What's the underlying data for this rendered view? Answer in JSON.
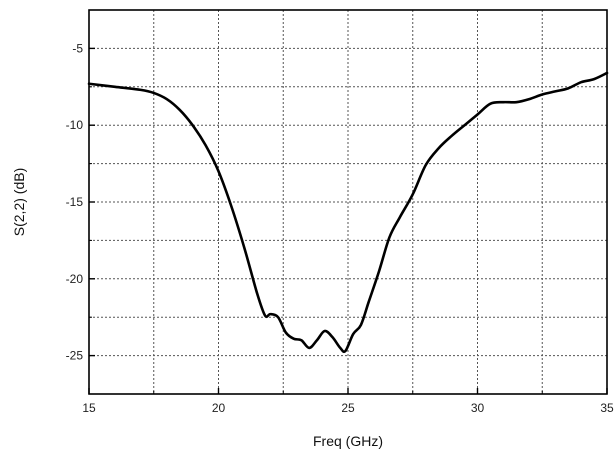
{
  "chart_data": {
    "type": "line",
    "title": "",
    "xlabel": "Freq (GHz)",
    "ylabel": "S(2,2) (dB)",
    "xlim": [
      15,
      35
    ],
    "ylim": [
      -27.5,
      -2.5
    ],
    "xticks": [
      15,
      20,
      25,
      30,
      35
    ],
    "xtick_labels": [
      "15",
      "20",
      "25",
      "30",
      "35"
    ],
    "yticks": [
      -5,
      -10,
      -15,
      -20,
      -25
    ],
    "ytick_labels": [
      "-5",
      "-10",
      "-15",
      "-20",
      "-25"
    ],
    "minor_grid_x": [
      17.5,
      22.5,
      27.5,
      32.5
    ],
    "minor_grid_y": [
      -7.5,
      -12.5,
      -17.5,
      -22.5
    ],
    "grid": true,
    "line_color": "#000000",
    "series": [
      {
        "x": [
          15,
          16,
          17,
          17.5,
          18,
          18.5,
          19,
          19.5,
          20,
          20.5,
          21,
          21.5,
          21.8,
          22,
          22.3,
          22.6,
          22.9,
          23.2,
          23.5,
          23.8,
          24.1,
          24.4,
          24.7,
          24.9,
          25.2,
          25.5,
          25.8,
          26.2,
          26.6,
          27,
          27.5,
          28,
          28.5,
          29,
          29.5,
          30,
          30.5,
          31,
          31.5,
          32,
          32.5,
          33,
          33.5,
          34,
          34.5,
          35
        ],
        "y": [
          -7.3,
          -7.5,
          -7.7,
          -7.9,
          -8.3,
          -9.0,
          -10.0,
          -11.3,
          -13.0,
          -15.3,
          -18.0,
          -21.0,
          -22.4,
          -22.3,
          -22.5,
          -23.5,
          -23.9,
          -24.0,
          -24.5,
          -24.0,
          -23.4,
          -23.8,
          -24.5,
          -24.7,
          -23.6,
          -23.0,
          -21.5,
          -19.5,
          -17.3,
          -16.0,
          -14.5,
          -12.6,
          -11.5,
          -10.7,
          -10.0,
          -9.3,
          -8.6,
          -8.5,
          -8.5,
          -8.3,
          -8.0,
          -7.8,
          -7.6,
          -7.2,
          -7.0,
          -6.6
        ]
      }
    ]
  }
}
